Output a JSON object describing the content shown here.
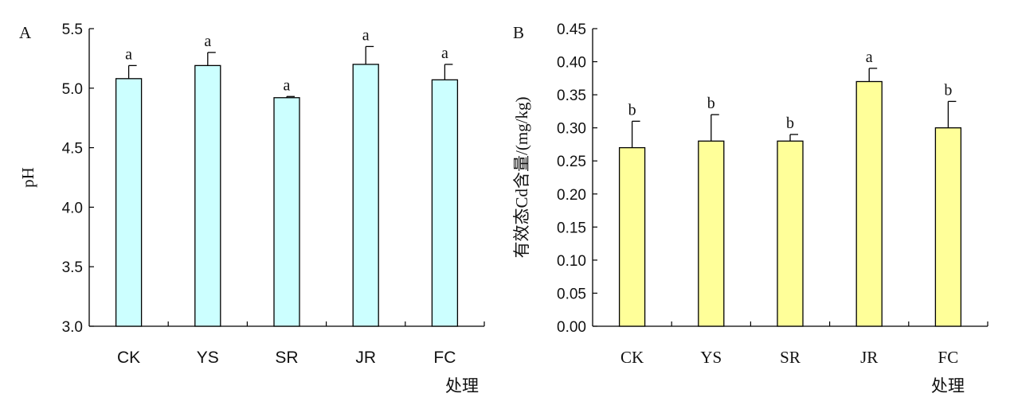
{
  "chart_data": [
    {
      "type": "bar",
      "panel_label": "A",
      "categories": [
        "CK",
        "YS",
        "SR",
        "JR",
        "FC"
      ],
      "values": [
        5.08,
        5.19,
        4.92,
        5.2,
        5.07
      ],
      "errors": [
        0.11,
        0.11,
        0.01,
        0.15,
        0.13
      ],
      "significance": [
        "a",
        "a",
        "a",
        "a",
        "a"
      ],
      "ylabel": "pH",
      "xlabel": "处理",
      "ylim": [
        3.0,
        5.5
      ],
      "yticks": [
        "3.0",
        "3.5",
        "4.0",
        "4.5",
        "5.0",
        "5.5"
      ],
      "bar_color": "#ccffff",
      "grid": false
    },
    {
      "type": "bar",
      "panel_label": "B",
      "categories": [
        "CK",
        "YS",
        "SR",
        "JR",
        "FC"
      ],
      "values": [
        0.27,
        0.28,
        0.28,
        0.37,
        0.3
      ],
      "errors": [
        0.04,
        0.04,
        0.01,
        0.02,
        0.04
      ],
      "significance": [
        "b",
        "b",
        "b",
        "a",
        "b"
      ],
      "ylabel": "有效态Cd含量/(mg/kg)",
      "xlabel": "处理",
      "ylim": [
        0.0,
        0.45
      ],
      "yticks": [
        "0.00",
        "0.05",
        "0.10",
        "0.15",
        "0.20",
        "0.25",
        "0.30",
        "0.35",
        "0.40",
        "0.45"
      ],
      "bar_color": "#ffff99",
      "grid": false
    }
  ]
}
